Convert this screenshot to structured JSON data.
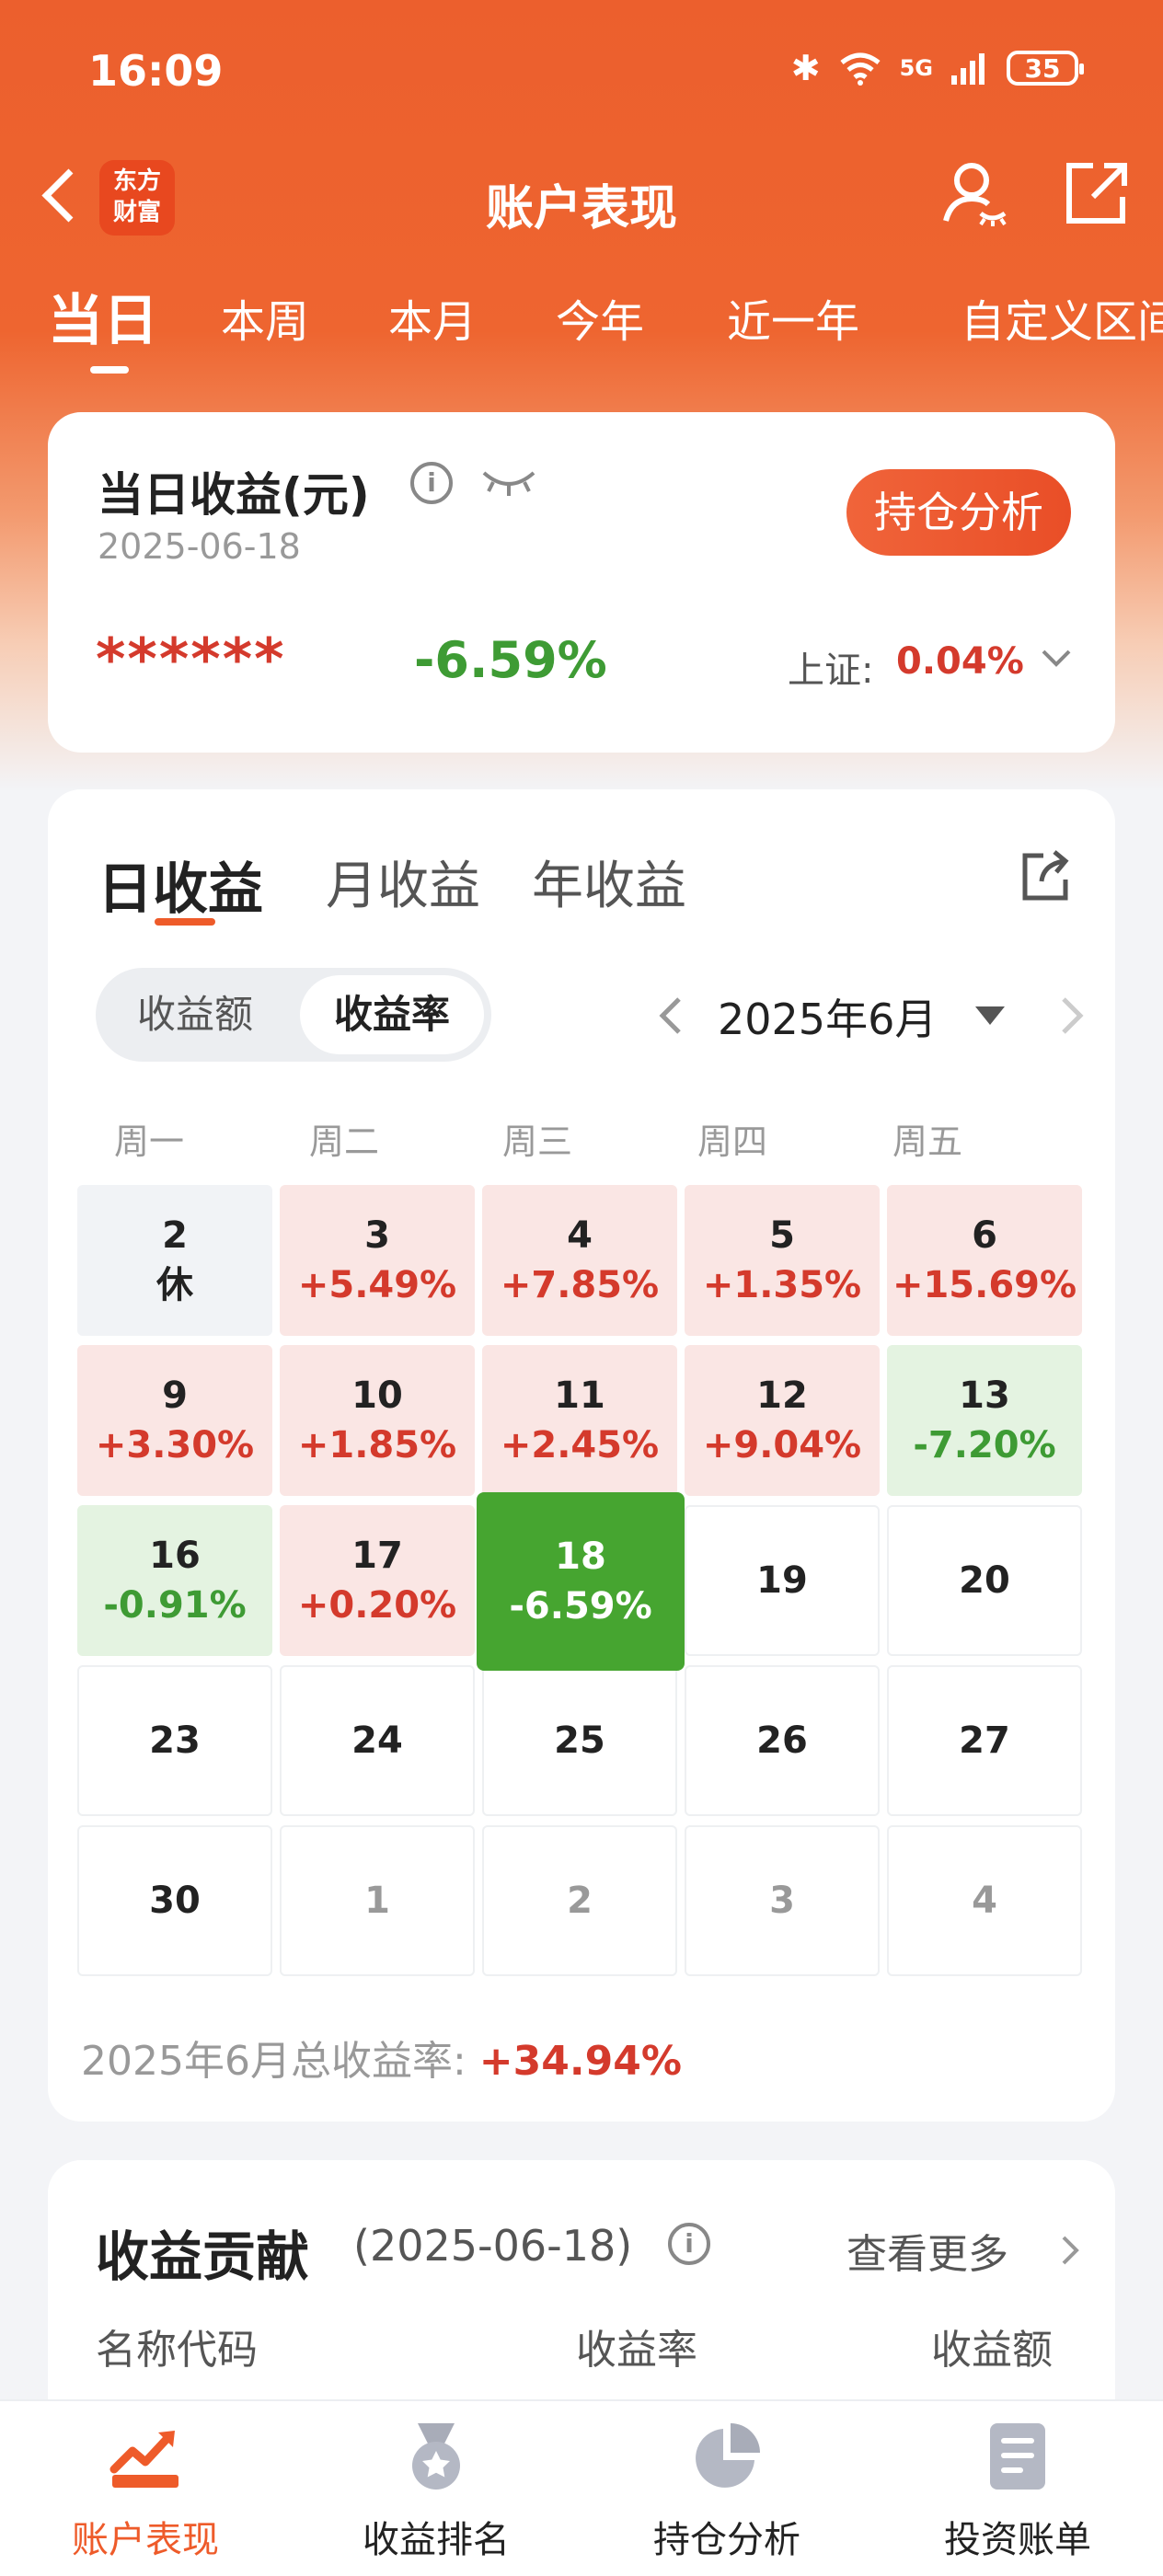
{
  "status_bar": {
    "time": "16:09",
    "battery": "35",
    "network": "5G"
  },
  "header": {
    "logo_line1": "东方",
    "logo_line2": "财富",
    "title": "账户表现"
  },
  "period_tabs": [
    "当日",
    "本周",
    "本月",
    "今年",
    "近一年",
    "自定义区间"
  ],
  "income": {
    "title": "当日收益(元)",
    "date": "2025-06-18",
    "hold_button": "持仓分析",
    "amount_masked": "******",
    "rate": "-6.59%",
    "index_label": "上证:",
    "index_value": "0.04%"
  },
  "calendar": {
    "tabs": [
      "日收益",
      "月收益",
      "年收益"
    ],
    "segment": [
      "收益额",
      "收益率"
    ],
    "month": "2025年6月",
    "weekdays": [
      "周一",
      "周二",
      "周三",
      "周四",
      "周五"
    ],
    "rows": [
      [
        {
          "d": "2",
          "v": "休",
          "s": "rest"
        },
        {
          "d": "3",
          "v": "+5.49%",
          "s": "up"
        },
        {
          "d": "4",
          "v": "+7.85%",
          "s": "up"
        },
        {
          "d": "5",
          "v": "+1.35%",
          "s": "up"
        },
        {
          "d": "6",
          "v": "+15.69%",
          "s": "up"
        }
      ],
      [
        {
          "d": "9",
          "v": "+3.30%",
          "s": "up"
        },
        {
          "d": "10",
          "v": "+1.85%",
          "s": "up"
        },
        {
          "d": "11",
          "v": "+2.45%",
          "s": "up"
        },
        {
          "d": "12",
          "v": "+9.04%",
          "s": "up"
        },
        {
          "d": "13",
          "v": "-7.20%",
          "s": "down"
        }
      ],
      [
        {
          "d": "16",
          "v": "-0.91%",
          "s": "down"
        },
        {
          "d": "17",
          "v": "+0.20%",
          "s": "up"
        },
        {
          "d": "18",
          "v": "-6.59%",
          "s": "sel"
        },
        {
          "d": "19",
          "v": "",
          "s": "empty"
        },
        {
          "d": "20",
          "v": "",
          "s": "empty"
        }
      ],
      [
        {
          "d": "23",
          "v": "",
          "s": "empty"
        },
        {
          "d": "24",
          "v": "",
          "s": "empty"
        },
        {
          "d": "25",
          "v": "",
          "s": "empty"
        },
        {
          "d": "26",
          "v": "",
          "s": "empty"
        },
        {
          "d": "27",
          "v": "",
          "s": "empty"
        }
      ],
      [
        {
          "d": "30",
          "v": "",
          "s": "empty"
        },
        {
          "d": "1",
          "v": "",
          "s": "other"
        },
        {
          "d": "2",
          "v": "",
          "s": "other"
        },
        {
          "d": "3",
          "v": "",
          "s": "other"
        },
        {
          "d": "4",
          "v": "",
          "s": "other"
        }
      ]
    ],
    "total_label": "2025年6月总收益率:",
    "total_value": "+34.94%"
  },
  "contribution": {
    "title": "收益贡献",
    "date": "(2025-06-18)",
    "more": "查看更多",
    "columns": [
      "名称代码",
      "收益率",
      "收益额"
    ]
  },
  "tabbar": [
    {
      "label": "账户表现",
      "icon": "chart-trend-icon",
      "active": true
    },
    {
      "label": "收益排名",
      "icon": "medal-icon",
      "active": false
    },
    {
      "label": "持仓分析",
      "icon": "pie-chart-icon",
      "active": false
    },
    {
      "label": "投资账单",
      "icon": "bill-icon",
      "active": false
    }
  ],
  "colors": {
    "brand": "#ee5b2a",
    "up": "#d43a2c",
    "down": "#3e9b34",
    "selected": "#46a530"
  }
}
